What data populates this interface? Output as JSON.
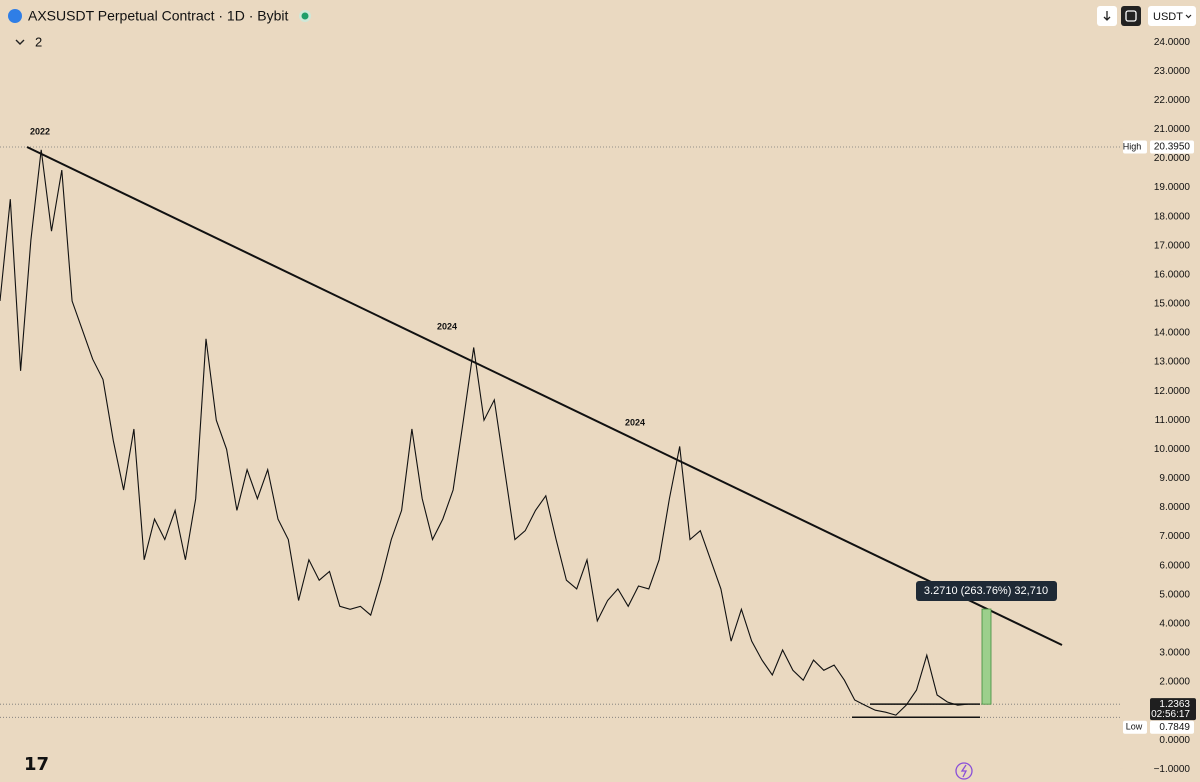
{
  "chart_data": {
    "type": "line",
    "title": "AXSUSDT Perpetual Contract · 1D · Bybit",
    "indicator_count": "2",
    "currency": "USDT",
    "series": [
      {
        "name": "AXSUSDT",
        "color": "#111111",
        "values": [
          15.1,
          18.6,
          12.7,
          17.2,
          20.3,
          17.5,
          19.6,
          15.1,
          14.1,
          13.1,
          12.4,
          10.3,
          8.6,
          10.7,
          6.2,
          7.6,
          6.9,
          7.9,
          6.2,
          8.3,
          13.8,
          11.0,
          10.0,
          7.9,
          9.3,
          8.3,
          9.3,
          7.6,
          6.9,
          4.8,
          6.2,
          5.5,
          5.8,
          4.6,
          4.5,
          4.6,
          4.3,
          5.5,
          6.9,
          7.9,
          10.7,
          8.3,
          6.9,
          7.6,
          8.6,
          11.0,
          13.5,
          11.0,
          11.7,
          9.3,
          6.9,
          7.2,
          7.9,
          8.4,
          6.9,
          5.5,
          5.2,
          6.2,
          4.1,
          4.8,
          5.2,
          4.6,
          5.3,
          5.2,
          6.2,
          8.3,
          10.1,
          6.9,
          7.2,
          6.2,
          5.2,
          3.4,
          4.5,
          3.4,
          2.75,
          2.24,
          3.1,
          2.4,
          2.06,
          2.75,
          2.4,
          2.58,
          2.06,
          1.38,
          1.2,
          1.03,
          0.96,
          0.86,
          1.2,
          1.72,
          2.92,
          1.55,
          1.31,
          1.2,
          1.24
        ]
      }
    ],
    "annotations": [
      "2022",
      "2024",
      "2024"
    ],
    "trendline": {
      "start": 20.395,
      "end": 3.27
    },
    "measure": {
      "from": 1.2363,
      "to": 4.5073,
      "label": "3.2710 (263.76%) 32,710"
    },
    "high": {
      "name": "High",
      "value": 20.395,
      "value_label": "20.3950"
    },
    "low": {
      "name": "Low",
      "value": 0.7849
    },
    "last": {
      "value": 1.2363,
      "countdown": "02:56:17"
    },
    "ylim": [
      -1.44,
      25.45
    ],
    "yticks": [
      {
        "value": -1,
        "label": "−1.0000"
      },
      {
        "value": 0,
        "label": "0.0000"
      },
      {
        "value": 1,
        "label": "1.0000"
      },
      {
        "value": 2,
        "label": "2.0000"
      },
      {
        "value": 3,
        "label": "3.0000"
      },
      {
        "value": 4,
        "label": "4.0000"
      },
      {
        "value": 5,
        "label": "5.0000"
      },
      {
        "value": 6,
        "label": "6.0000"
      },
      {
        "value": 7,
        "label": "7.0000"
      },
      {
        "value": 8,
        "label": "8.0000"
      },
      {
        "value": 9,
        "label": "9.0000"
      },
      {
        "value": 10,
        "label": "10.0000"
      },
      {
        "value": 11,
        "label": "11.0000"
      },
      {
        "value": 12,
        "label": "12.0000"
      },
      {
        "value": 13,
        "label": "13.0000"
      },
      {
        "value": 14,
        "label": "14.0000"
      },
      {
        "value": 15,
        "label": "15.0000"
      },
      {
        "value": 16,
        "label": "16.0000"
      },
      {
        "value": 17,
        "label": "17.0000"
      },
      {
        "value": 18,
        "label": "18.0000"
      },
      {
        "value": 19,
        "label": "19.0000"
      },
      {
        "value": 20,
        "label": "20.0000"
      },
      {
        "value": 21,
        "label": "21.0000"
      },
      {
        "value": 22,
        "label": "22.0000"
      },
      {
        "value": 23,
        "label": "23.0000"
      },
      {
        "value": 24,
        "label": "24.0000"
      }
    ],
    "grid": false
  }
}
